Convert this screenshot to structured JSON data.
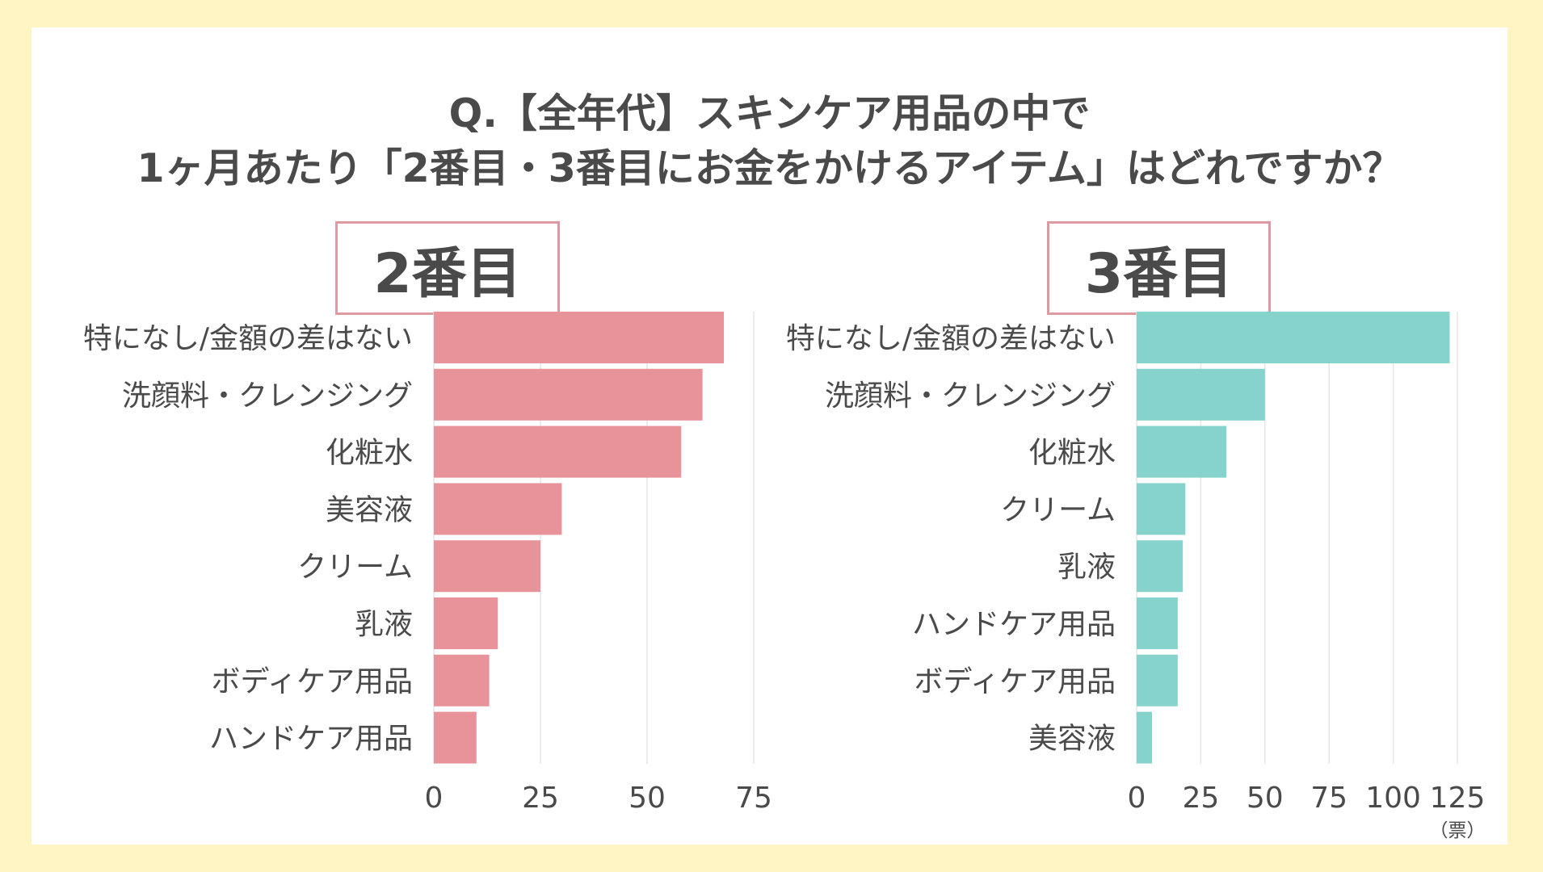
{
  "title": {
    "line1": "Q.【全年代】スキンケア用品の中で",
    "line2": "1ヶ月あたり「2番目・3番目にお金をかけるアイテム」はどれですか？"
  },
  "unit_label": "（票）",
  "colors": {
    "background": "#fff4c4",
    "canvas": "#ffffff",
    "bar_left": "#e8939a",
    "bar_right": "#86d2cd",
    "box_border": "#dd9aa3",
    "gridline": "#e6e6e6",
    "text": "#4a4a4a"
  },
  "chart_data": [
    {
      "type": "bar",
      "orientation": "horizontal",
      "title": "2番目",
      "categories": [
        "特になし/金額の差はない",
        "洗顔料・クレンジング",
        "化粧水",
        "美容液",
        "クリーム",
        "乳液",
        "ボディケア用品",
        "ハンドケア用品"
      ],
      "values": [
        68,
        63,
        58,
        30,
        25,
        15,
        13,
        10
      ],
      "xlim": [
        0,
        75
      ],
      "xticks": [
        0,
        25,
        50,
        75
      ],
      "grid": true
    },
    {
      "type": "bar",
      "orientation": "horizontal",
      "title": "3番目",
      "categories": [
        "特になし/金額の差はない",
        "洗顔料・クレンジング",
        "化粧水",
        "クリーム",
        "乳液",
        "ハンドケア用品",
        "ボディケア用品",
        "美容液"
      ],
      "values": [
        122,
        50,
        35,
        19,
        18,
        16,
        16,
        6
      ],
      "xlim": [
        0,
        125
      ],
      "xticks": [
        0,
        25,
        50,
        75,
        100,
        125
      ],
      "xlabel": "（票）",
      "grid": true
    }
  ]
}
